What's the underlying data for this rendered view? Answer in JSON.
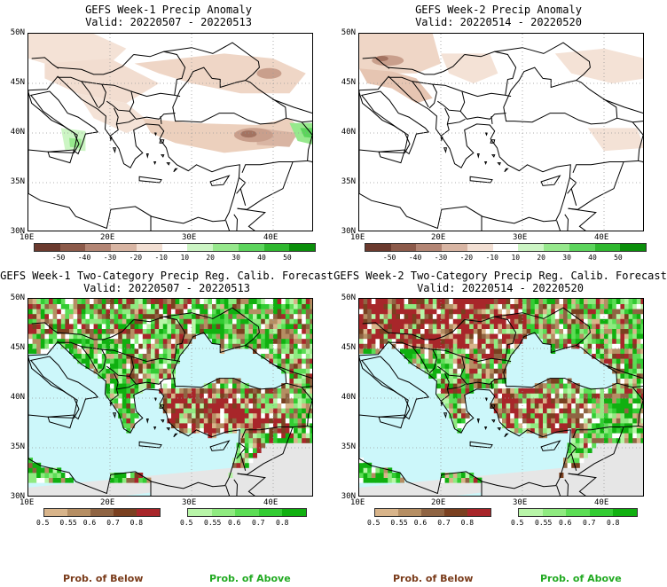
{
  "panels": [
    {
      "title": "GEFS Week-1 Precip Anomaly",
      "valid": "Valid: 20220507 - 20220513"
    },
    {
      "title": "GEFS Week-2 Precip Anomaly",
      "valid": "Valid: 20220514 - 20220520"
    },
    {
      "title": "GEFS Week-1 Two-Category Precip Reg. Calib. Forecast",
      "valid": "Valid: 20220507 - 20220513"
    },
    {
      "title": "GEFS Week-2 Two-Category Precip Reg. Calib. Forecast",
      "valid": "Valid: 20220514 - 20220520"
    }
  ],
  "axes": {
    "lat_labels": [
      "50N",
      "45N",
      "40N",
      "35N",
      "30N"
    ],
    "lon_labels": [
      "10E",
      "20E",
      "30E",
      "40E"
    ]
  },
  "anomaly_legend": {
    "labels": [
      "-50",
      "-40",
      "-30",
      "-20",
      "-10",
      "10",
      "20",
      "30",
      "40",
      "50"
    ],
    "colors": [
      "#6b3a2e",
      "#8c5a4a",
      "#b38574",
      "#d8b5a3",
      "#f2dfd3",
      "#ffffff",
      "#ccf5c4",
      "#96e88c",
      "#5cd45c",
      "#2fb82f",
      "#0a8f0a"
    ]
  },
  "prob_legend": {
    "labels": [
      "0.5",
      "0.55",
      "0.6",
      "0.7",
      "0.8"
    ],
    "below_colors": [
      "#d8b48a",
      "#b58e63",
      "#8f6443",
      "#7a4020",
      "#a8262a"
    ],
    "above_colors": [
      "#b8f5a8",
      "#8fea80",
      "#5cdd55",
      "#33cc33",
      "#10b010"
    ],
    "below_label": "Prob. of Below",
    "above_label": "Prob. of Above"
  },
  "colors": {
    "sea": "#ccf7fa",
    "nodata": "#e6e6e6",
    "below_text": "#7a3b1a",
    "above_text": "#22aa22"
  }
}
